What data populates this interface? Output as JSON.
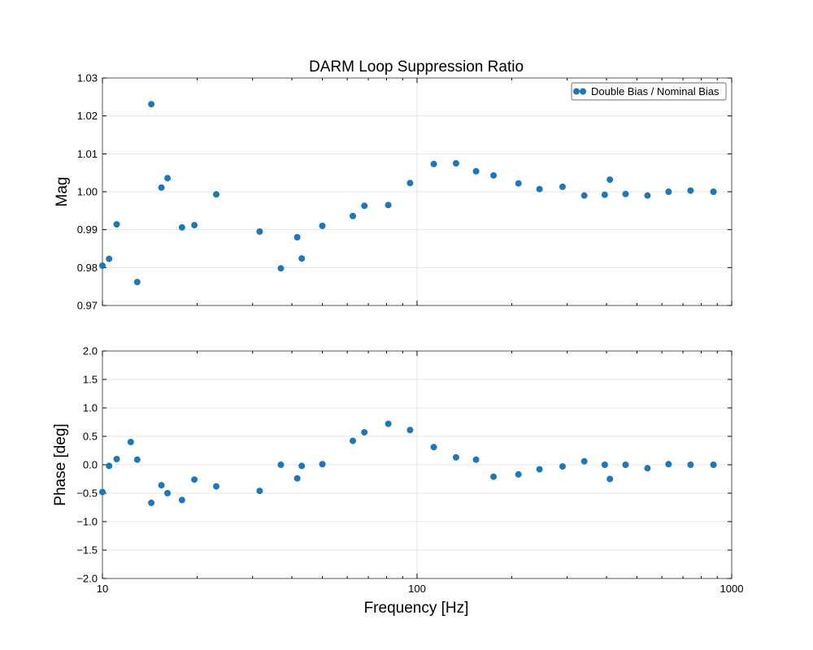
{
  "chart_data": {
    "type": "scatter",
    "title": "DARM Loop Suppression Ratio",
    "xlabel": "Frequency [Hz]",
    "xscale": "log",
    "xlim": [
      10,
      1000
    ],
    "x_tick_labels": [
      "10",
      "100",
      "1000"
    ],
    "grid": true,
    "legend_position": "upper-right",
    "marker_color": "#1f77b4",
    "x": [
      10.0,
      10.5,
      11.1,
      12.3,
      12.9,
      14.3,
      15.4,
      16.1,
      17.9,
      19.6,
      23.0,
      31.6,
      36.9,
      41.6,
      43.0,
      50.0,
      62.5,
      68.0,
      81.0,
      95.0,
      113.0,
      133.0,
      154.0,
      175.0,
      210.0,
      245.0,
      290.0,
      340.0,
      395.0,
      410.0,
      460.0,
      540.0,
      630.0,
      740.0,
      875.0
    ],
    "series": [
      {
        "name": "Double Bias / Nominal Bias",
        "subplot": "magnitude",
        "y": [
          0.9805,
          0.9823,
          0.9914,
          null,
          0.9762,
          1.0231,
          1.0011,
          1.0036,
          0.9906,
          0.9912,
          0.9993,
          0.9895,
          0.9798,
          0.988,
          0.9824,
          0.991,
          0.9936,
          0.9963,
          0.9965,
          1.0023,
          1.0073,
          1.0075,
          1.0054,
          1.0043,
          1.0022,
          1.0007,
          1.0013,
          0.999,
          0.9992,
          1.0032,
          0.9994,
          0.999,
          1.0,
          1.0003,
          1.0
        ]
      },
      {
        "name": "",
        "subplot": "phase",
        "y": [
          -0.48,
          -0.02,
          0.1,
          0.4,
          0.09,
          -0.67,
          -0.36,
          -0.5,
          -0.62,
          -0.26,
          -0.38,
          -0.46,
          0.0,
          -0.24,
          -0.02,
          0.01,
          0.42,
          0.57,
          0.72,
          0.61,
          0.31,
          0.13,
          0.09,
          -0.21,
          -0.17,
          -0.08,
          -0.03,
          0.06,
          0.0,
          -0.25,
          0.0,
          -0.06,
          0.01,
          0.0,
          0.0
        ]
      }
    ],
    "subplots": [
      {
        "id": "magnitude",
        "ylabel": "Mag",
        "ylim": [
          0.97,
          1.03
        ],
        "y_ticks": [
          0.97,
          0.98,
          0.99,
          1.0,
          1.01,
          1.02,
          1.03
        ],
        "y_tick_labels": [
          "0.97",
          "0.98",
          "0.99",
          "1.00",
          "1.01",
          "1.02",
          "1.03"
        ],
        "show_x_tick_labels": false
      },
      {
        "id": "phase",
        "ylabel": "Phase [deg]",
        "ylim": [
          -2.0,
          2.0
        ],
        "y_ticks": [
          -2.0,
          -1.5,
          -1.0,
          -0.5,
          0.0,
          0.5,
          1.0,
          1.5,
          2.0
        ],
        "y_tick_labels": [
          "−2.0",
          "−1.5",
          "−1.0",
          "−0.5",
          "0.0",
          "0.5",
          "1.0",
          "1.5",
          "2.0"
        ],
        "show_x_tick_labels": true
      }
    ],
    "legend": {
      "entries": [
        "Double Bias / Nominal Bias"
      ]
    }
  }
}
